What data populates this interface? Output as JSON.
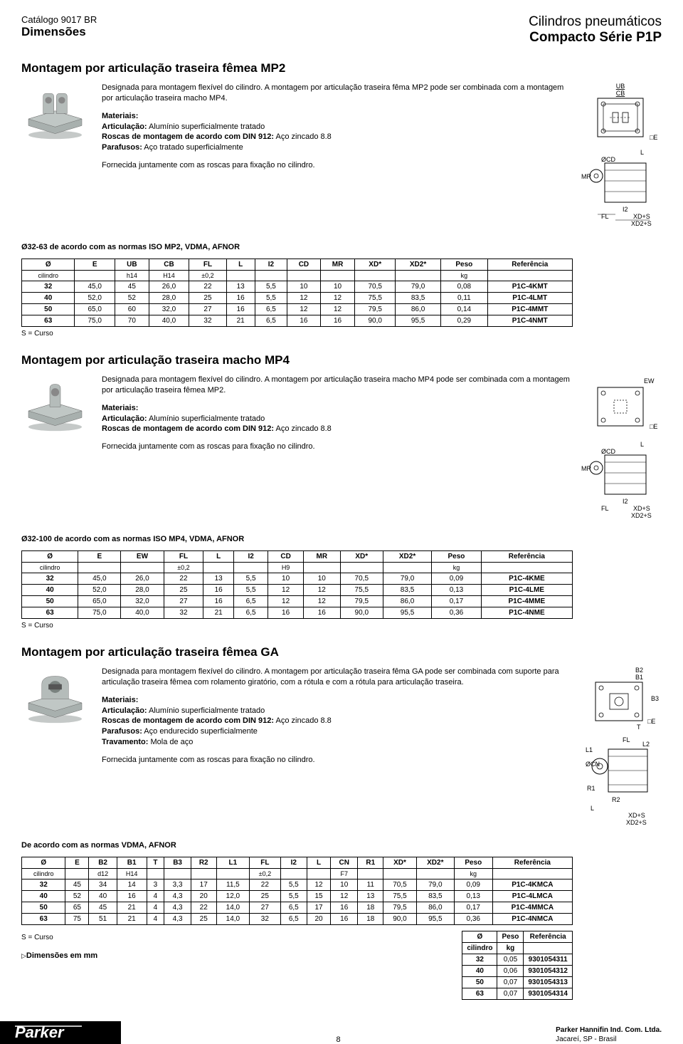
{
  "header": {
    "catalog": "Catálogo 9017 BR",
    "section": "Dimensões",
    "product_line": "Cilindros pneumáticos",
    "series": "Compacto Série P1P"
  },
  "mp2": {
    "title": "Montagem por articulação traseira fêmea MP2",
    "desc1": "Designada para montagem flexível do cilindro. A montagem por articulação traseira fêma MP2 pode ser combinada com a montagem por articulação traseira macho MP4.",
    "mat_title": "Materiais:",
    "mat1_b": "Articulação:",
    "mat1_t": " Alumínio superficialmente tratado",
    "mat2_b": "Roscas de montagem de acordo com DIN 912:",
    "mat2_t": " Aço zincado 8.8",
    "mat3_b": "Parafusos:",
    "mat3_t": " Aço tratado superficialmente",
    "supply": "Fornecida juntamente com as roscas para fixação no cilindro.",
    "note": "Ø32-63 de acordo com as normas ISO MP2, VDMA, AFNOR",
    "columns": [
      "Ø\ncilindro",
      "E",
      "UB\nh14",
      "CB\nH14",
      "FL\n±0,2",
      "L",
      "I2",
      "CD",
      "MR",
      "XD*",
      "XD2*",
      "Peso\nkg",
      "Referência"
    ],
    "rows": [
      [
        "32",
        "45,0",
        "45",
        "26,0",
        "22",
        "13",
        "5,5",
        "10",
        "10",
        "70,5",
        "79,0",
        "0,08",
        "P1C-4KMT"
      ],
      [
        "40",
        "52,0",
        "52",
        "28,0",
        "25",
        "16",
        "5,5",
        "12",
        "12",
        "75,5",
        "83,5",
        "0,11",
        "P1C-4LMT"
      ],
      [
        "50",
        "65,0",
        "60",
        "32,0",
        "27",
        "16",
        "6,5",
        "12",
        "12",
        "79,5",
        "86,0",
        "0,14",
        "P1C-4MMT"
      ],
      [
        "63",
        "75,0",
        "70",
        "40,0",
        "32",
        "21",
        "6,5",
        "16",
        "16",
        "90,0",
        "95,5",
        "0,29",
        "P1C-4NMT"
      ]
    ],
    "diag_top_labels": [
      "UB",
      "CB",
      "□E"
    ],
    "diag_side_labels": [
      "L",
      "ØCD",
      "MR",
      "I2",
      "FL",
      "XD+S",
      "XD2+S"
    ]
  },
  "mp4": {
    "title": "Montagem por articulação traseira macho MP4",
    "desc1": "Designada para montagem flexível do cilindro. A montagem por articulação traseira macho MP4 pode ser combinada com a montagem por articulação traseira fêmea MP2.",
    "mat_title": "Materiais:",
    "mat1_b": "Articulação:",
    "mat1_t": " Alumínio superficialmente tratado",
    "mat2_b": "Roscas de montagem de acordo com DIN 912:",
    "mat2_t": " Aço zincado 8.8",
    "supply": "Fornecida juntamente com as roscas para fixação no cilindro.",
    "note": "Ø32-100 de acordo com as normas ISO MP4, VDMA, AFNOR",
    "columns": [
      "Ø\ncilindro",
      "E",
      "EW",
      "FL\n±0,2",
      "L",
      "I2",
      "CD\nH9",
      "MR",
      "XD*",
      "XD2*",
      "Peso\nkg",
      "Referência"
    ],
    "rows": [
      [
        "32",
        "45,0",
        "26,0",
        "22",
        "13",
        "5,5",
        "10",
        "10",
        "70,5",
        "79,0",
        "0,09",
        "P1C-4KME"
      ],
      [
        "40",
        "52,0",
        "28,0",
        "25",
        "16",
        "5,5",
        "12",
        "12",
        "75,5",
        "83,5",
        "0,13",
        "P1C-4LME"
      ],
      [
        "50",
        "65,0",
        "32,0",
        "27",
        "16",
        "6,5",
        "12",
        "12",
        "79,5",
        "86,0",
        "0,17",
        "P1C-4MME"
      ],
      [
        "63",
        "75,0",
        "40,0",
        "32",
        "21",
        "6,5",
        "16",
        "16",
        "90,0",
        "95,5",
        "0,36",
        "P1C-4NME"
      ]
    ],
    "diag_top_labels": [
      "EW",
      "□E"
    ],
    "diag_side_labels": [
      "L",
      "ØCD",
      "MR",
      "I2",
      "FL",
      "XD+S",
      "XD2+S"
    ]
  },
  "ga": {
    "title": "Montagem por articulação traseira fêmea GA",
    "desc1": "Designada para montagem flexível do cilindro. A montagem por articulação traseira fêma GA pode ser combinada com suporte para articulação traseira fêmea com rolamento giratório, com a rótula e com a rótula para articulação traseira.",
    "mat_title": "Materiais:",
    "mat1_b": "Articulação:",
    "mat1_t": " Alumínio superficialmente tratado",
    "mat2_b": "Roscas de montagem de acordo com DIN 912:",
    "mat2_t": " Aço zincado 8.8",
    "mat3_b": "Parafusos:",
    "mat3_t": " Aço endurecido superficialmente",
    "mat4_b": "Travamento:",
    "mat4_t": " Mola de aço",
    "supply": "Fornecida juntamente com as roscas para fixação no cilindro.",
    "note": "De acordo com as normas VDMA, AFNOR",
    "columns": [
      "Ø\ncilindro",
      "E",
      "B2\nd12",
      "B1\nH14",
      "T",
      "B3",
      "R2",
      "L1",
      "FL\n±0,2",
      "I2",
      "L",
      "CN\nF7",
      "R1",
      "XD*",
      "XD2*",
      "Peso\nkg",
      "Referência"
    ],
    "rows": [
      [
        "32",
        "45",
        "34",
        "14",
        "3",
        "3,3",
        "17",
        "11,5",
        "22",
        "5,5",
        "12",
        "10",
        "11",
        "70,5",
        "79,0",
        "0,09",
        "P1C-4KMCA"
      ],
      [
        "40",
        "52",
        "40",
        "16",
        "4",
        "4,3",
        "20",
        "12,0",
        "25",
        "5,5",
        "15",
        "12",
        "13",
        "75,5",
        "83,5",
        "0,13",
        "P1C-4LMCA"
      ],
      [
        "50",
        "65",
        "45",
        "21",
        "4",
        "4,3",
        "22",
        "14,0",
        "27",
        "6,5",
        "17",
        "16",
        "18",
        "79,5",
        "86,0",
        "0,17",
        "P1C-4MMCA"
      ],
      [
        "63",
        "75",
        "51",
        "21",
        "4",
        "4,3",
        "25",
        "14,0",
        "32",
        "6,5",
        "20",
        "16",
        "18",
        "90,0",
        "95,5",
        "0,36",
        "P1C-4NMCA"
      ]
    ],
    "small_columns": [
      "Ø\ncilindro",
      "Peso\nkg",
      "Referência"
    ],
    "small_rows": [
      [
        "32",
        "0,05",
        "9301054311"
      ],
      [
        "40",
        "0,06",
        "9301054312"
      ],
      [
        "50",
        "0,07",
        "9301054313"
      ],
      [
        "63",
        "0,07",
        "9301054314"
      ]
    ],
    "diag_top_labels": [
      "B2",
      "B1",
      "B3",
      "T",
      "□E"
    ],
    "diag_side_labels": [
      "FL",
      "L2",
      "L1",
      "ØCN",
      "R1",
      "R2",
      "L",
      "XD+S",
      "XD2+S"
    ]
  },
  "s_curso": "S = Curso",
  "dim_mm": "Dimensões em mm",
  "footer": {
    "logo_text": "Parker",
    "page_num": "8",
    "company": "Parker Hannifin Ind. Com. Ltda.",
    "city": "Jacareí, SP - Brasil"
  },
  "colors": {
    "black": "#000000",
    "white": "#ffffff",
    "thumb_fill": "#a8b0ae",
    "thumb_shadow": "#6f7876"
  }
}
